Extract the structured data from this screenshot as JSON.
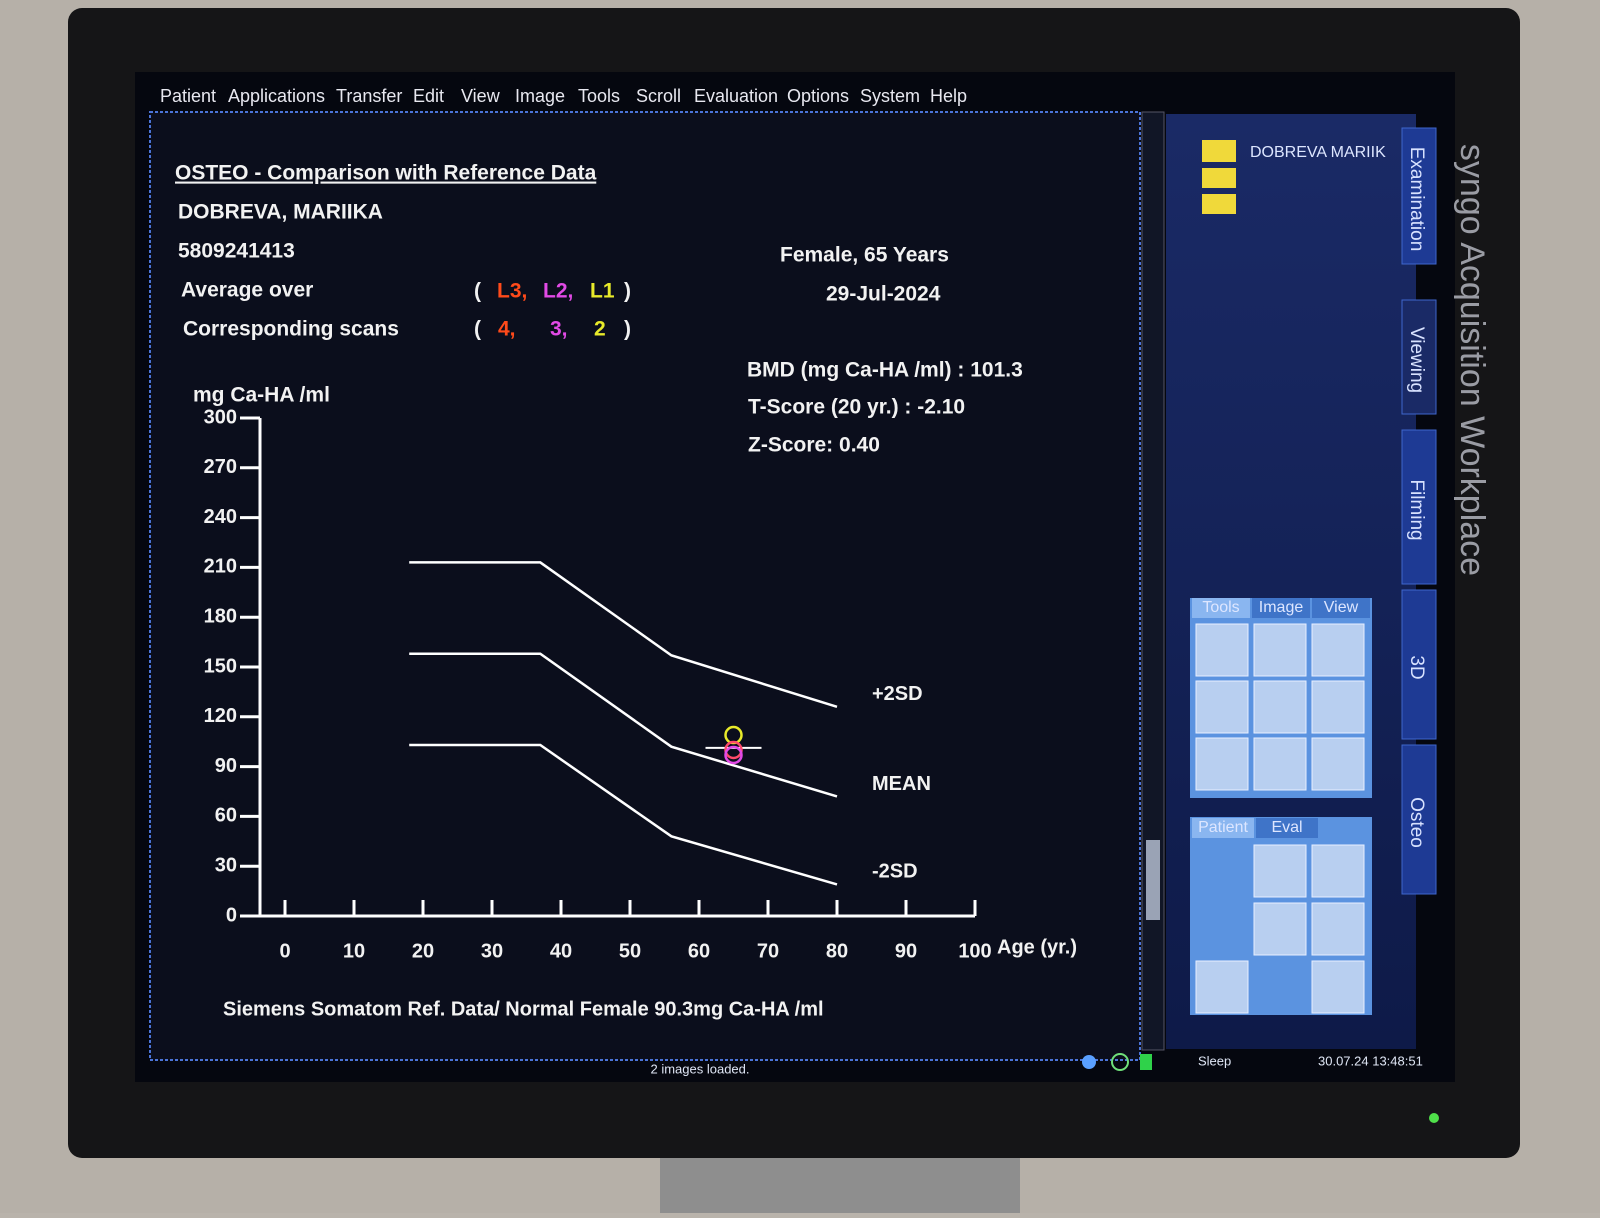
{
  "menu": [
    "Patient",
    "Applications",
    "Transfer",
    "Edit",
    "View",
    "Image",
    "Tools",
    "Scroll",
    "Evaluation",
    "Options",
    "System",
    "Help"
  ],
  "report": {
    "title": "OSTEO - Comparison with Reference Data",
    "name": "DOBREVA, MARIIKA",
    "id": "5809241413",
    "average_label": "Average over",
    "scans_label": "Corresponding scans",
    "paren_open": "(",
    "paren_close": ")",
    "levels": [
      {
        "text": "L3,",
        "color": "#ff4a1a"
      },
      {
        "text": "L2,",
        "color": "#e24ae6"
      },
      {
        "text": "L1",
        "color": "#e8ea2a"
      }
    ],
    "scans": [
      {
        "text": "4,",
        "color": "#ff4a1a"
      },
      {
        "text": "3,",
        "color": "#e24ae6"
      },
      {
        "text": "2",
        "color": "#e8ea2a"
      }
    ],
    "sex_age": "Female, 65 Years",
    "date": "29-Jul-2024",
    "bmd": "BMD (mg Ca-HA /ml) : 101.3",
    "t_score": "T-Score (20 yr.) : -2.10",
    "z_score": "Z-Score: 0.40",
    "footnote": "Siemens Somatom Ref. Data/ Normal Female 90.3mg Ca-HA /ml"
  },
  "chart_data": {
    "type": "line",
    "ylabel": "mg Ca-HA /ml",
    "xlabel": "Age (yr.)",
    "x": [
      18,
      37,
      56,
      80
    ],
    "series": [
      {
        "name": "+2SD",
        "color": "#ffffff",
        "values": [
          213,
          213,
          157,
          126
        ]
      },
      {
        "name": "MEAN",
        "color": "#ffffff",
        "values": [
          158,
          158,
          102,
          72
        ]
      },
      {
        "name": "-2SD",
        "color": "#ffffff",
        "values": [
          103,
          103,
          48,
          19
        ]
      }
    ],
    "points": [
      {
        "x": 65,
        "value": 109,
        "color": "#e8ea2a"
      },
      {
        "x": 65,
        "value": 100,
        "color": "#ff4a6a"
      },
      {
        "x": 65,
        "value": 97,
        "color": "#e24ae6"
      }
    ],
    "marker": {
      "x": 65,
      "value": 101.3,
      "color": "#ffffff"
    },
    "xlim": [
      0,
      100
    ],
    "ylim": [
      0,
      300
    ],
    "xticks": [
      0,
      10,
      20,
      30,
      40,
      50,
      60,
      70,
      80,
      90,
      100
    ],
    "yticks": [
      0,
      30,
      60,
      90,
      120,
      150,
      180,
      210,
      240,
      270,
      300
    ]
  },
  "sidebar": {
    "patient": "DOBREVA MARIIK",
    "tabs": [
      "Examination",
      "Viewing",
      "Filming",
      "3D",
      "Osteo"
    ],
    "tool_tabs": [
      "Tools",
      "Image",
      "View"
    ],
    "patient_tabs": [
      "Patient",
      "Eval"
    ]
  },
  "brand": "syngo Acquisition Workplace",
  "status": {
    "message": "2 images loaded.",
    "sleep": "Sleep",
    "datetime": "30.07.24 13:48:51"
  }
}
